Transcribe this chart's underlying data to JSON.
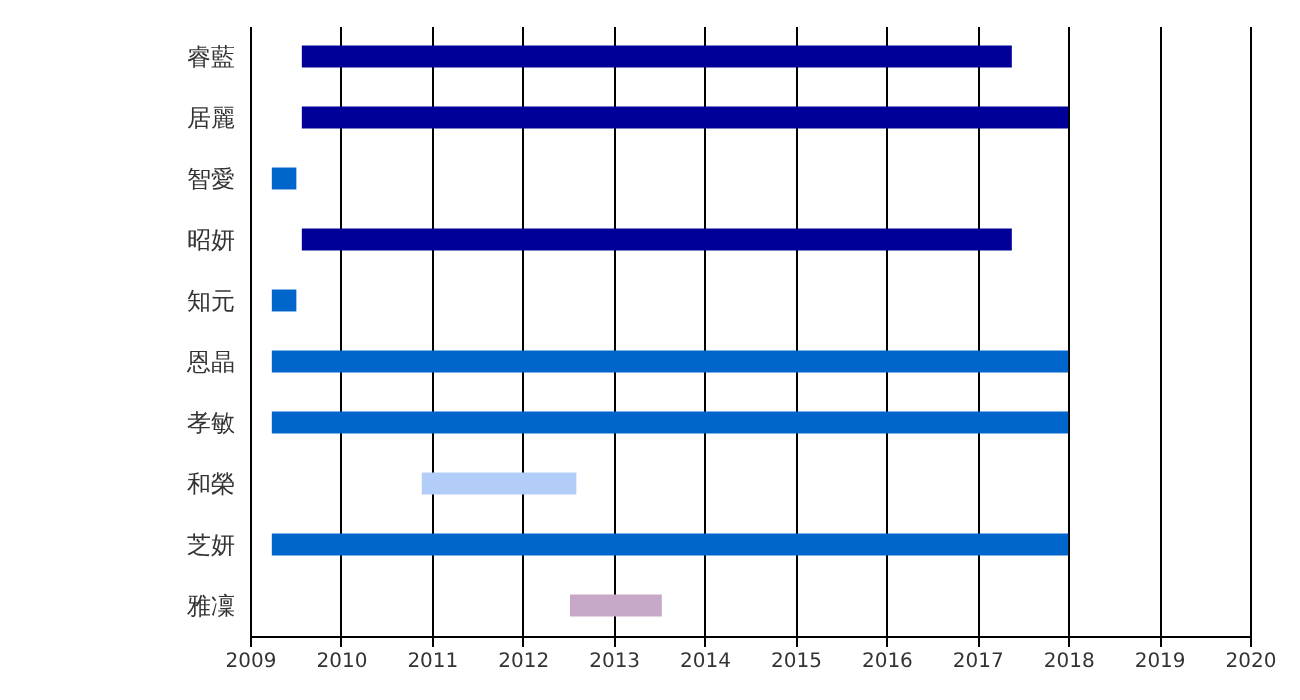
{
  "chart_data": {
    "type": "bar",
    "orientation": "horizontal",
    "categories": [
      "睿藍",
      "居麗",
      "智愛",
      "昭妍",
      "知元",
      "恩晶",
      "孝敏",
      "和榮",
      "芝妍",
      "雅凜"
    ],
    "base": [
      2009.57,
      2009.57,
      2009.24,
      2009.57,
      2009.24,
      2009.24,
      2009.24,
      2010.89,
      2009.24,
      2012.52
    ],
    "values": [
      7.81,
      8.43,
      0.27,
      7.81,
      0.27,
      8.76,
      8.76,
      1.7,
      8.76,
      1.01
    ],
    "colors": [
      "#000099",
      "#000099",
      "#0066cc",
      "#000099",
      "#0066cc",
      "#0066cc",
      "#0066cc",
      "#b3cdf9",
      "#0066cc",
      "#c8a8c8"
    ],
    "xlim": [
      2009,
      2020
    ],
    "xticks": [
      2009,
      2010,
      2011,
      2012,
      2013,
      2014,
      2015,
      2016,
      2017,
      2018,
      2019,
      2020
    ],
    "grid": "x"
  }
}
